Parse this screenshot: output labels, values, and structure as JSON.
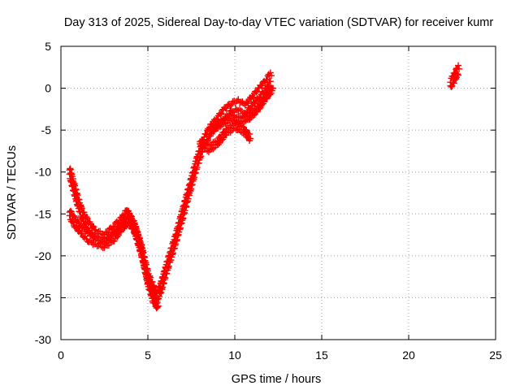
{
  "chart_data": {
    "type": "scatter",
    "title": "Day 313 of 2025, Sidereal Day-to-day VTEC variation (SDTVAR) for receiver kumr",
    "xlabel": "GPS time / hours",
    "ylabel": "SDTVAR / TECUs",
    "xlim": [
      0,
      25
    ],
    "ylim": [
      -30,
      5
    ],
    "xticks": [
      0,
      5,
      10,
      15,
      20,
      25
    ],
    "yticks": [
      -30,
      -25,
      -20,
      -15,
      -10,
      -5,
      0,
      5
    ],
    "grid": true,
    "marker": "+",
    "series_color": "#ff0000",
    "band_series": [
      {
        "half_width": 0.7,
        "x": [
          0.5,
          0.7,
          0.9,
          1.2,
          1.6,
          2.0,
          2.5,
          3.0,
          3.5,
          3.8,
          4.2,
          4.6,
          5.0,
          5.3,
          5.5,
          5.8,
          6.0,
          6.3,
          6.6,
          7.0,
          7.4,
          7.8,
          8.2,
          8.6,
          9.0,
          9.4,
          9.8,
          10.2,
          10.6,
          11.0,
          11.4,
          11.8,
          12.1
        ],
        "y": [
          -10.0,
          -11.5,
          -13.0,
          -15.0,
          -16.5,
          -17.5,
          -18.0,
          -17.0,
          -16.0,
          -15.0,
          -16.5,
          -19.0,
          -22.5,
          -24.0,
          -25.0,
          -23.5,
          -22.0,
          -20.0,
          -18.0,
          -15.0,
          -12.0,
          -9.0,
          -6.5,
          -5.0,
          -4.0,
          -3.0,
          -2.3,
          -2.0,
          -2.5,
          -1.5,
          -0.5,
          0.5,
          1.5
        ]
      },
      {
        "half_width": 0.6,
        "x": [
          0.5,
          0.8,
          1.2,
          1.6,
          2.0,
          2.5,
          3.0,
          3.5,
          3.9,
          4.3,
          4.7,
          5.0,
          5.3,
          5.6
        ],
        "y": [
          -15.0,
          -16.0,
          -17.0,
          -17.8,
          -18.2,
          -18.5,
          -17.8,
          -16.5,
          -15.5,
          -17.0,
          -20.0,
          -23.0,
          -25.0,
          -26.0
        ]
      },
      {
        "half_width": 0.4,
        "x": [
          8.0,
          8.5,
          9.0,
          9.5,
          10.0,
          10.5,
          10.9
        ],
        "y": [
          -6.5,
          -7.2,
          -6.5,
          -5.2,
          -4.5,
          -5.0,
          -6.0
        ]
      },
      {
        "half_width": 0.35,
        "x": [
          8.6,
          9.2,
          9.8,
          10.3,
          10.8,
          11.3,
          11.8,
          12.2
        ],
        "y": [
          -5.0,
          -4.2,
          -3.5,
          -3.8,
          -3.5,
          -2.5,
          -1.0,
          0.0
        ]
      },
      {
        "half_width": 0.6,
        "x": [
          22.4,
          22.6,
          22.8,
          22.9
        ],
        "y": [
          0.5,
          1.2,
          2.0,
          2.3
        ]
      }
    ]
  }
}
